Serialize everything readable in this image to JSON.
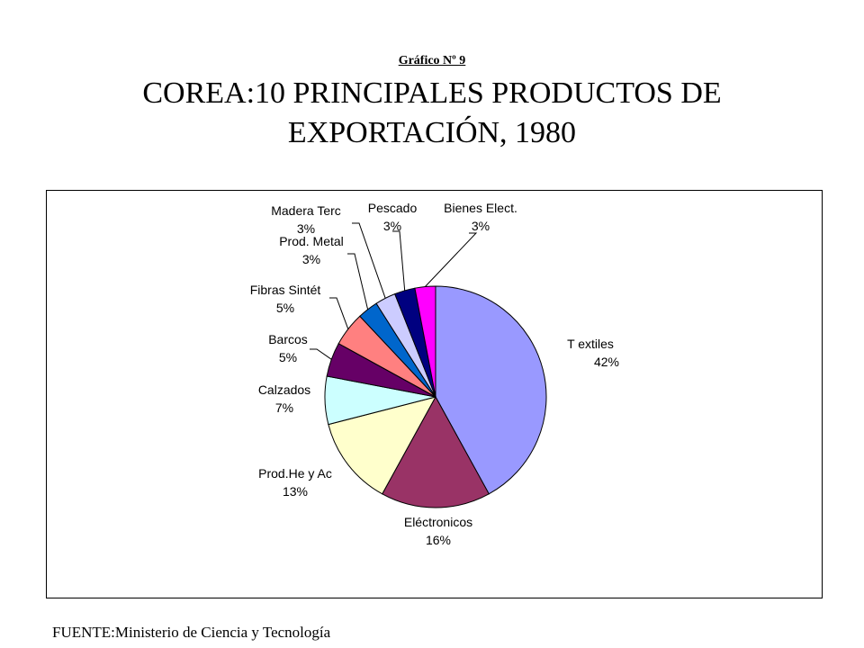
{
  "header": {
    "figure_label": "Gráfico Nº 9",
    "title_line1": "COREA:10 PRINCIPALES PRODUCTOS DE",
    "title_line2": "EXPORTACIÓN, 1980"
  },
  "footer": {
    "source": "FUENTE:Ministerio de Ciencia y Tecnología"
  },
  "chart_data": {
    "type": "pie",
    "title": "COREA:10 PRINCIPALES PRODUCTOS DE EXPORTACIÓN, 1980",
    "start_angle_deg": 0,
    "direction": "clockwise",
    "legend": "none",
    "slices": [
      {
        "label": "T extiles",
        "value": 42,
        "value_label": "42%",
        "color": "#9999FF"
      },
      {
        "label": "Eléctronicos",
        "value": 16,
        "value_label": "16%",
        "color": "#993366"
      },
      {
        "label": "Prod.He y Ac",
        "value": 13,
        "value_label": "13%",
        "color": "#FFFFCC"
      },
      {
        "label": "Calzados",
        "value": 7,
        "value_label": "7%",
        "color": "#CCFFFF"
      },
      {
        "label": "Barcos",
        "value": 5,
        "value_label": "5%",
        "color": "#660066"
      },
      {
        "label": "Fibras Sintét",
        "value": 5,
        "value_label": "5%",
        "color": "#FF8080"
      },
      {
        "label": "Prod. Metal",
        "value": 3,
        "value_label": "3%",
        "color": "#0066CC"
      },
      {
        "label": "Madera Terc",
        "value": 3,
        "value_label": "3%",
        "color": "#CCCCFF"
      },
      {
        "label": "Pescado",
        "value": 3,
        "value_label": "3%",
        "color": "#000080"
      },
      {
        "label": "Bienes Elect.",
        "value": 3,
        "value_label": "3%",
        "color": "#FF00FF"
      }
    ]
  }
}
